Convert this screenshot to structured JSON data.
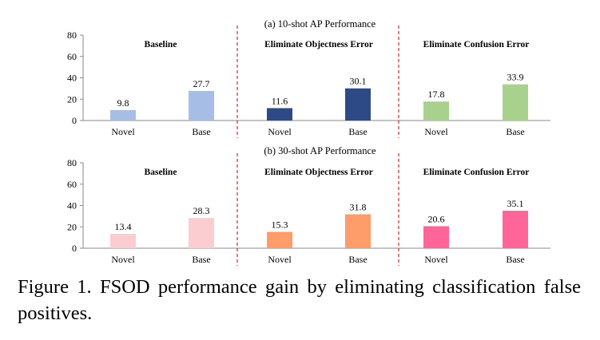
{
  "chart_data": [
    {
      "type": "bar",
      "title": "(a) 10-shot AP Performance",
      "ylim": [
        0,
        80
      ],
      "yticks": [
        0,
        20,
        40,
        60,
        80
      ],
      "grid": false,
      "groups": [
        {
          "name": "Baseline",
          "categories": [
            "Novel",
            "Base"
          ],
          "values": [
            9.8,
            27.7
          ],
          "colors": [
            "#a6bee5",
            "#a6bee5"
          ]
        },
        {
          "name": "Eliminate Objectness Error",
          "categories": [
            "Novel",
            "Base"
          ],
          "values": [
            11.6,
            30.1
          ],
          "colors": [
            "#2e4a86",
            "#2e4a86"
          ]
        },
        {
          "name": "Eliminate Confusion Error",
          "categories": [
            "Novel",
            "Base"
          ],
          "values": [
            17.8,
            33.9
          ],
          "colors": [
            "#a9d18e",
            "#a9d18e"
          ]
        }
      ]
    },
    {
      "type": "bar",
      "title": "(b) 30-shot AP Performance",
      "ylim": [
        0,
        80
      ],
      "yticks": [
        0,
        20,
        40,
        60,
        80
      ],
      "grid": false,
      "groups": [
        {
          "name": "Baseline",
          "categories": [
            "Novel",
            "Base"
          ],
          "values": [
            13.4,
            28.3
          ],
          "colors": [
            "#fccdd0",
            "#fccdd0"
          ]
        },
        {
          "name": "Eliminate Objectness Error",
          "categories": [
            "Novel",
            "Base"
          ],
          "values": [
            15.3,
            31.8
          ],
          "colors": [
            "#fe9c6a",
            "#fe9c6a"
          ]
        },
        {
          "name": "Eliminate Confusion Error",
          "categories": [
            "Novel",
            "Base"
          ],
          "values": [
            20.6,
            35.1
          ],
          "colors": [
            "#ff6599",
            "#ff6599"
          ]
        }
      ]
    }
  ],
  "caption": "Figure 1. FSOD performance gain by eliminating classification false positives.",
  "colors": {
    "divider": "#c00000",
    "axis": "#888888"
  }
}
